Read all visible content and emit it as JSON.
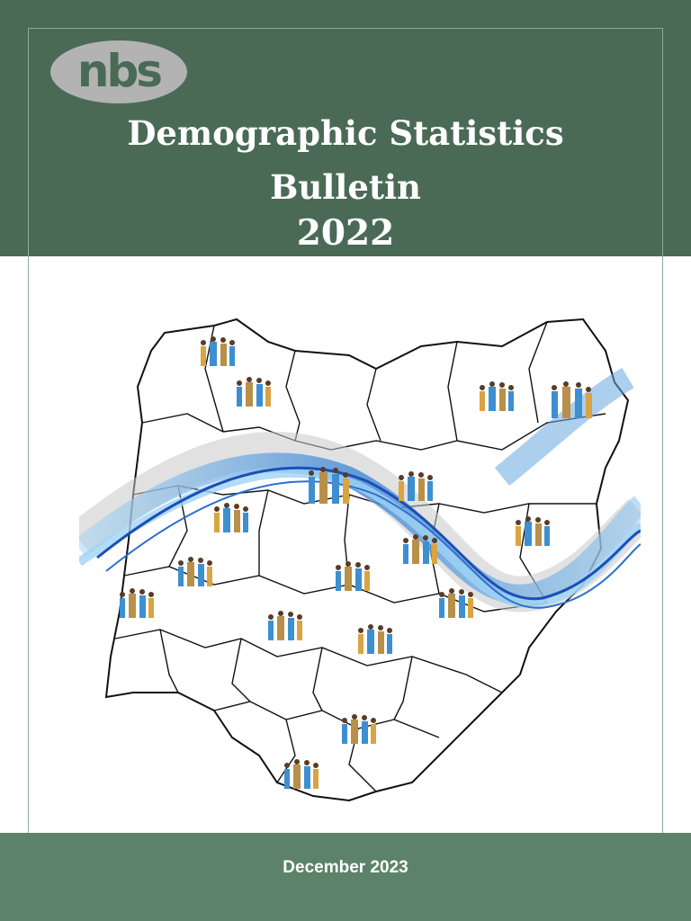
{
  "logo": {
    "text": "nbs",
    "icon": "nbs-logo"
  },
  "title": {
    "line1": "Demographic Statistics",
    "line2": "Bulletin",
    "line3": "2022"
  },
  "cover_image": {
    "icon": "nigeria-states-map-with-people"
  },
  "footer": {
    "date": "December 2023"
  },
  "colors": {
    "header": "#4a6a56",
    "footer": "#5c8369",
    "wave": "#2f7fd4"
  }
}
